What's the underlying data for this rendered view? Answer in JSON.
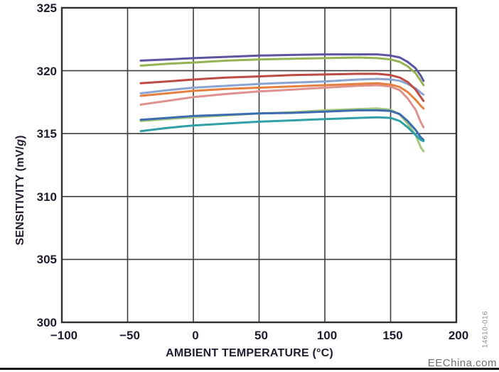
{
  "figure": {
    "code": "14610-016",
    "watermark": "EEChina.com"
  },
  "colors": {
    "axis": "#2e2e2e",
    "grid": "#3d3d3d",
    "tick_text": "#221b2d",
    "watermark_text": "#6f6f6f"
  },
  "chart_data": {
    "type": "line",
    "title": "",
    "xlabel": "AMBIENT TEMPERATURE (°C)",
    "ylabel": "SENSITIVITY (mV/g)",
    "ylabel_parts": {
      "pre": "SENSITIVITY (mV/",
      "italic": "g",
      "post": ")"
    },
    "xlim": [
      -100,
      200
    ],
    "ylim": [
      300,
      325
    ],
    "xticks": [
      -100,
      -50,
      0,
      50,
      100,
      150,
      200
    ],
    "yticks": [
      300,
      305,
      310,
      315,
      320,
      325
    ],
    "grid": true,
    "legend": "none",
    "x": [
      -40,
      -20,
      0,
      25,
      50,
      75,
      100,
      125,
      140,
      150,
      157,
      163,
      169,
      173,
      175
    ],
    "series": [
      {
        "name": "unit-slate-blue",
        "color": "#8AA5D1",
        "values": [
          318.2,
          318.45,
          318.65,
          318.8,
          318.95,
          319.05,
          319.15,
          319.3,
          319.35,
          319.3,
          319.2,
          318.95,
          318.6,
          318.25,
          318.1
        ]
      },
      {
        "name": "unit-salmon",
        "color": "#DE918F",
        "values": [
          317.3,
          317.6,
          317.9,
          318.15,
          318.35,
          318.5,
          318.65,
          318.8,
          318.85,
          318.75,
          318.45,
          317.8,
          316.9,
          315.9,
          315.5
        ]
      },
      {
        "name": "unit-orange",
        "color": "#E5803F",
        "values": [
          318.0,
          318.2,
          318.4,
          318.55,
          318.65,
          318.75,
          318.85,
          318.95,
          319.0,
          318.9,
          318.7,
          318.3,
          317.7,
          317.2,
          317.0
        ]
      },
      {
        "name": "unit-dark-red",
        "color": "#BE4A44",
        "values": [
          319.0,
          319.15,
          319.3,
          319.45,
          319.55,
          319.65,
          319.7,
          319.75,
          319.75,
          319.65,
          319.45,
          319.1,
          318.5,
          317.9,
          317.6
        ]
      },
      {
        "name": "unit-light-green",
        "color": "#A4C77F",
        "values": [
          316.0,
          316.15,
          316.3,
          316.45,
          316.6,
          316.7,
          316.85,
          316.95,
          317.0,
          316.9,
          316.5,
          315.8,
          314.9,
          313.9,
          313.6
        ]
      },
      {
        "name": "unit-steel-blue",
        "color": "#3D6BB0",
        "values": [
          316.1,
          316.25,
          316.4,
          316.5,
          316.6,
          316.65,
          316.75,
          316.85,
          316.85,
          316.8,
          316.55,
          316.0,
          315.3,
          314.7,
          314.5
        ]
      },
      {
        "name": "unit-teal",
        "color": "#2FA0A8",
        "values": [
          315.2,
          315.45,
          315.65,
          315.8,
          315.95,
          316.05,
          316.15,
          316.25,
          316.3,
          316.25,
          316.0,
          315.5,
          314.9,
          314.5,
          314.4
        ]
      },
      {
        "name": "unit-olive-green",
        "color": "#94B353",
        "values": [
          320.4,
          320.55,
          320.65,
          320.8,
          320.9,
          320.95,
          321.0,
          321.05,
          321.0,
          320.9,
          320.7,
          320.35,
          319.8,
          319.2,
          318.85
        ]
      },
      {
        "name": "unit-purple",
        "color": "#5B54A0",
        "values": [
          320.8,
          320.9,
          321.0,
          321.1,
          321.2,
          321.25,
          321.3,
          321.3,
          321.3,
          321.2,
          321.05,
          320.7,
          320.2,
          319.6,
          319.2
        ]
      }
    ]
  }
}
